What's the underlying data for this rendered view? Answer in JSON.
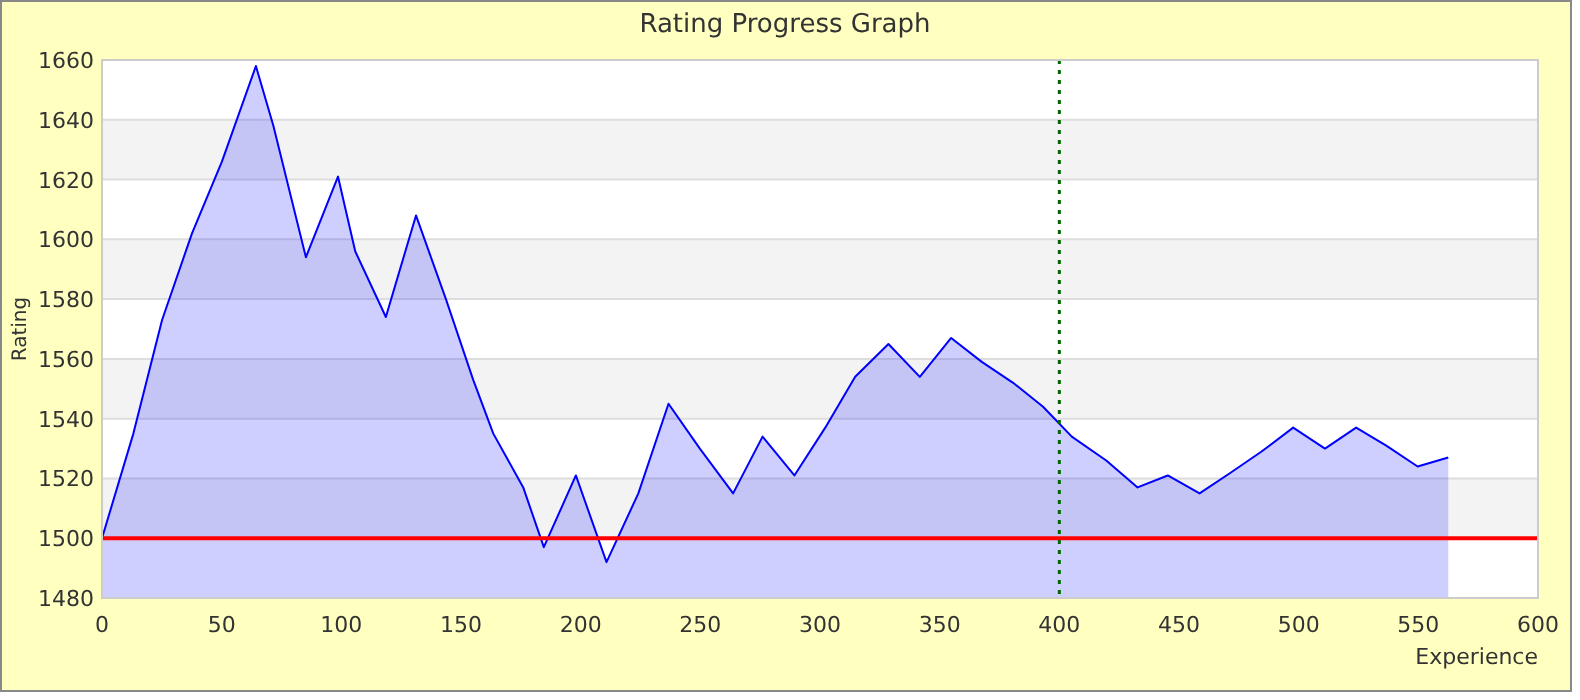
{
  "chart_data": {
    "type": "area",
    "title": "Rating Progress Graph",
    "xlabel": "Experience",
    "ylabel": "Rating",
    "x": [
      0,
      13.1,
      25.1,
      37.6,
      50.1,
      64.3,
      71.6,
      85.2,
      98.6,
      105.8,
      118.6,
      131.2,
      143.7,
      155.1,
      163.5,
      176,
      184.6,
      198,
      210.8,
      224.1,
      236.7,
      249.8,
      263.7,
      276,
      289.3,
      302.2,
      314.7,
      328.6,
      341.7,
      354.8,
      367.6,
      380.7,
      393.2,
      405.2,
      419.6,
      432.7,
      445.3,
      458.6,
      471.7,
      484.5,
      497.7,
      511,
      524,
      536.6,
      549.7,
      562.5
    ],
    "series": [
      {
        "color": "#0000ff",
        "values": [
          1500,
          1535,
          1573,
          1602,
          1626,
          1658,
          1638,
          1594,
          1621,
          1596,
          1574,
          1608,
          1580,
          1553,
          1535,
          1517,
          1497,
          1521,
          1492,
          1515,
          1545,
          1530,
          1515,
          1534,
          1521,
          1537,
          1554,
          1565,
          1554,
          1567,
          1559,
          1552,
          1544,
          1534,
          1526,
          1517,
          1521,
          1515,
          1522,
          1529,
          1537,
          1530,
          1537,
          1531,
          1524,
          1527
        ]
      }
    ],
    "xlim": [
      0,
      600
    ],
    "xticks": [
      0,
      50,
      100,
      150,
      200,
      250,
      300,
      350,
      400,
      450,
      500,
      550,
      600
    ],
    "ylim": [
      1480,
      1660
    ],
    "yticks": [
      1480,
      1500,
      1520,
      1540,
      1560,
      1580,
      1600,
      1620,
      1640,
      1660
    ],
    "grid": "y",
    "marker": "none",
    "line_style": "solid",
    "ref_lines": [
      {
        "axis": "y",
        "value": 1500,
        "color": "#ff0000",
        "line_style": "solid"
      },
      {
        "axis": "x",
        "value": 400,
        "color": "#006600",
        "line_style": "dotted"
      }
    ]
  }
}
